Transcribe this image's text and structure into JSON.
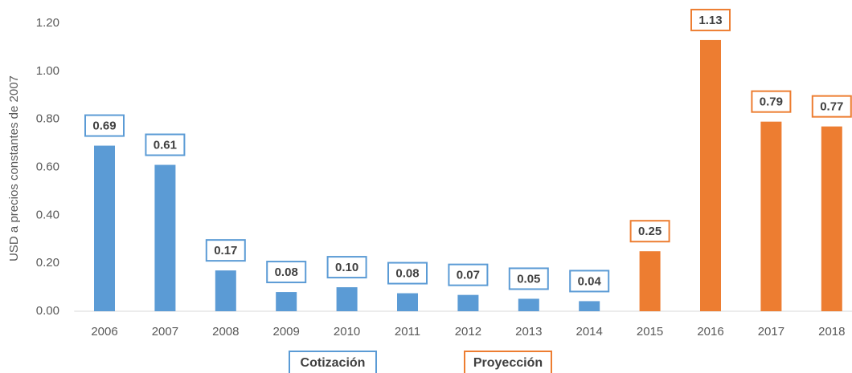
{
  "chart_data": {
    "type": "bar",
    "ylabel": "USD a precios constantes de 2007",
    "categories": [
      "2006",
      "2007",
      "2008",
      "2009",
      "2010",
      "2011",
      "2012",
      "2013",
      "2014",
      "2015",
      "2016",
      "2017",
      "2018"
    ],
    "series": [
      {
        "name": "Cotización",
        "color": "#5b9bd5",
        "values": [
          0.69,
          0.61,
          0.17,
          0.08,
          0.1,
          0.075,
          0.068,
          0.052,
          0.042,
          null,
          null,
          null,
          null
        ],
        "value_labels": [
          "0.69",
          "0.61",
          "0.17",
          "0.08",
          "0.10",
          "0.08",
          "0.07",
          "0.05",
          "0.04",
          null,
          null,
          null,
          null
        ]
      },
      {
        "name": "Proyección",
        "color": "#ed7d31",
        "values": [
          null,
          null,
          null,
          null,
          null,
          null,
          null,
          null,
          null,
          0.25,
          1.13,
          0.79,
          0.77
        ],
        "value_labels": [
          null,
          null,
          null,
          null,
          null,
          null,
          null,
          null,
          null,
          "0.25",
          "1.13",
          "0.79",
          "0.77"
        ]
      }
    ],
    "ylim": [
      0,
      1.2
    ],
    "yticks": [
      {
        "value": 0,
        "label": "0.00"
      },
      {
        "value": 0.2,
        "label": "0.20"
      },
      {
        "value": 0.4,
        "label": "0.40"
      },
      {
        "value": 0.6,
        "label": "0.60"
      },
      {
        "value": 0.8,
        "label": "0.80"
      },
      {
        "value": 1,
        "label": "1.00"
      },
      {
        "value": 1.2,
        "label": "1.20"
      }
    ],
    "grid": false
  }
}
